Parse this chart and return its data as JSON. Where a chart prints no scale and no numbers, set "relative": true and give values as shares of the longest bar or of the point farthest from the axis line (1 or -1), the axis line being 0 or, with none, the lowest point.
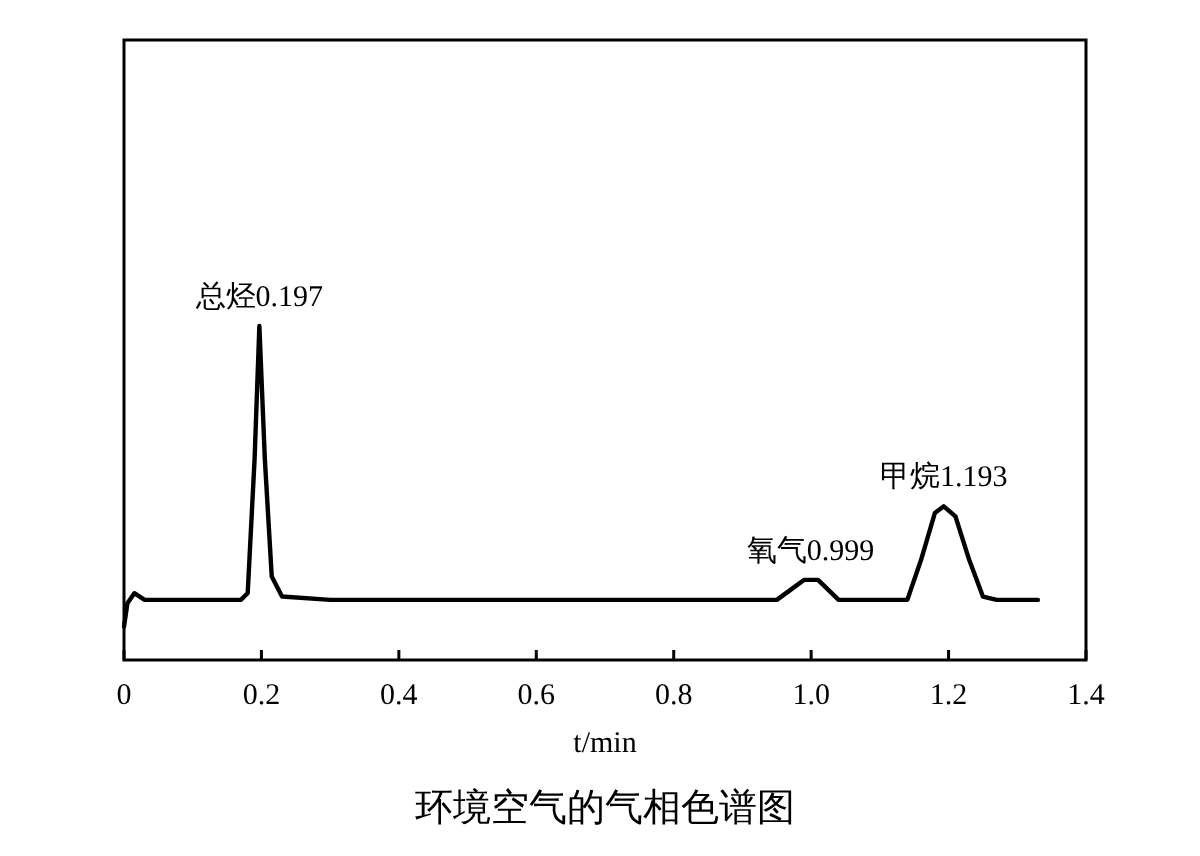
{
  "chart_data": {
    "type": "line",
    "relative": true,
    "title": "环境空气的气相色谱图",
    "xlabel": "t/min",
    "xlim": [
      0,
      1.4
    ],
    "xticks": [
      0,
      0.2,
      0.4,
      0.6,
      0.8,
      {
        "value": 1,
        "label": "1.0"
      },
      1.2,
      1.4
    ],
    "annotations": [
      {
        "text": "总烃0.197",
        "x": 0.197,
        "y": 1
      },
      {
        "text": "氧气0.999",
        "x": 0.999,
        "y": 0.24
      },
      {
        "text": "甲烷1.193",
        "x": 1.193,
        "y": 0.46
      }
    ],
    "series": [
      {
        "color": "#000000",
        "x": [
          0,
          0.005,
          0.015,
          0.03,
          0.1,
          0.17,
          0.18,
          0.19,
          0.197,
          0.205,
          0.215,
          0.23,
          0.3,
          0.7,
          0.95,
          0.97,
          0.99,
          1.01,
          1.04,
          1.14,
          1.16,
          1.18,
          1.193,
          1.21,
          1.23,
          1.25,
          1.27,
          1.33
        ],
        "values": [
          0.1,
          0.17,
          0.2,
          0.18,
          0.18,
          0.18,
          0.2,
          0.6,
          1,
          0.6,
          0.25,
          0.19,
          0.18,
          0.18,
          0.18,
          0.21,
          0.24,
          0.24,
          0.18,
          0.18,
          0.3,
          0.44,
          0.46,
          0.43,
          0.3,
          0.19,
          0.18,
          0.18
        ]
      }
    ],
    "grid": false,
    "marker": "none",
    "line_style": "solid"
  }
}
